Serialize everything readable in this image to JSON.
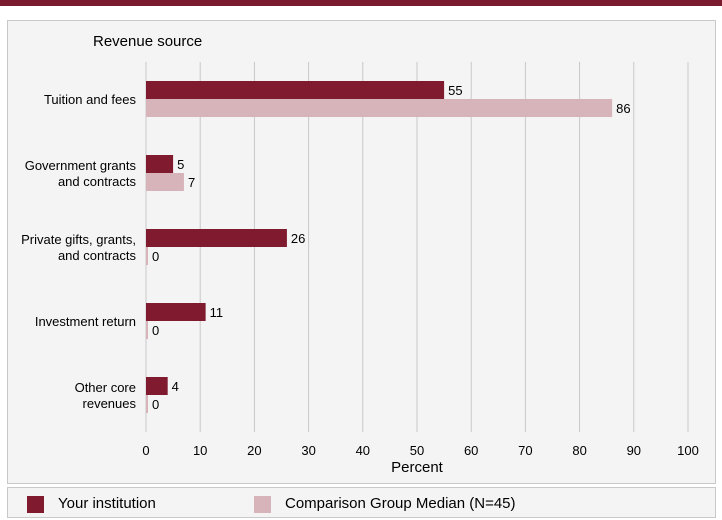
{
  "chart_data": {
    "type": "bar",
    "orientation": "horizontal",
    "y_axis_title": "Revenue source",
    "xlabel": "Percent",
    "xlim": [
      0,
      100
    ],
    "xticks": [
      0,
      10,
      20,
      30,
      40,
      50,
      60,
      70,
      80,
      90,
      100
    ],
    "grid": true,
    "categories": [
      [
        "Tuition and fees"
      ],
      [
        "Government grants",
        "and contracts"
      ],
      [
        "Private gifts, grants,",
        "and contracts"
      ],
      [
        "Investment return"
      ],
      [
        "Other core",
        "revenues"
      ]
    ],
    "series": [
      {
        "name": "Your institution",
        "color": "#7f1a2f",
        "values": [
          55,
          5,
          26,
          11,
          4
        ]
      },
      {
        "name": "Comparison Group Median (N=45)",
        "color": "#d7b4ba",
        "values": [
          86,
          7,
          0,
          0,
          0
        ]
      }
    ]
  },
  "legend": {
    "items": [
      {
        "label": "Your institution",
        "color": "#7f1a2f"
      },
      {
        "label": "Comparison Group Median (N=45)",
        "color": "#d7b4ba"
      }
    ]
  }
}
